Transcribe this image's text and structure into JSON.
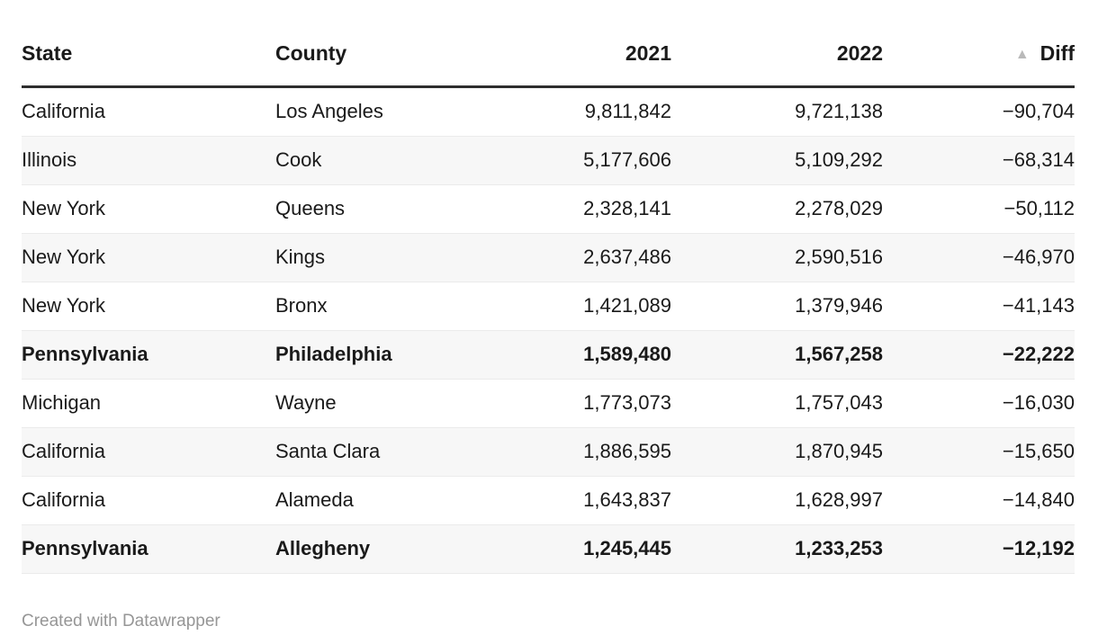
{
  "table": {
    "columns": [
      {
        "key": "state",
        "label": "State",
        "align": "left"
      },
      {
        "key": "county",
        "label": "County",
        "align": "left"
      },
      {
        "key": "y2021",
        "label": "2021",
        "align": "right"
      },
      {
        "key": "y2022",
        "label": "2022",
        "align": "right"
      },
      {
        "key": "diff",
        "label": "Diff",
        "align": "right",
        "sort": "ascending",
        "sort_icon": "▲"
      }
    ],
    "rows": [
      {
        "state": "California",
        "county": "Los Angeles",
        "y2021": "9,811,842",
        "y2022": "9,721,138",
        "diff": "−90,704",
        "bold": false
      },
      {
        "state": "Illinois",
        "county": "Cook",
        "y2021": "5,177,606",
        "y2022": "5,109,292",
        "diff": "−68,314",
        "bold": false
      },
      {
        "state": "New York",
        "county": "Queens",
        "y2021": "2,328,141",
        "y2022": "2,278,029",
        "diff": "−50,112",
        "bold": false
      },
      {
        "state": "New York",
        "county": "Kings",
        "y2021": "2,637,486",
        "y2022": "2,590,516",
        "diff": "−46,970",
        "bold": false
      },
      {
        "state": "New York",
        "county": "Bronx",
        "y2021": "1,421,089",
        "y2022": "1,379,946",
        "diff": "−41,143",
        "bold": false
      },
      {
        "state": "Pennsylvania",
        "county": "Philadelphia",
        "y2021": "1,589,480",
        "y2022": "1,567,258",
        "diff": "−22,222",
        "bold": true
      },
      {
        "state": "Michigan",
        "county": "Wayne",
        "y2021": "1,773,073",
        "y2022": "1,757,043",
        "diff": "−16,030",
        "bold": false
      },
      {
        "state": "California",
        "county": "Santa Clara",
        "y2021": "1,886,595",
        "y2022": "1,870,945",
        "diff": "−15,650",
        "bold": false
      },
      {
        "state": "California",
        "county": "Alameda",
        "y2021": "1,643,837",
        "y2022": "1,628,997",
        "diff": "−14,840",
        "bold": false
      },
      {
        "state": "Pennsylvania",
        "county": "Allegheny",
        "y2021": "1,245,445",
        "y2022": "1,233,253",
        "diff": "−12,192",
        "bold": true
      }
    ]
  },
  "footer": {
    "attribution": "Created with Datawrapper"
  },
  "colors": {
    "text": "#1a1a1a",
    "header_border": "#2e2e2e",
    "row_alt_bg": "#f7f7f7",
    "row_border": "#ebebeb",
    "sort_icon": "#b9b9b9",
    "footer_text": "#969696"
  }
}
